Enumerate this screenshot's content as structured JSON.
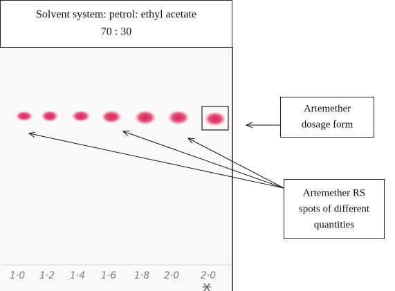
{
  "header": {
    "line1": "Solvent system: petrol: ethyl acetate",
    "line2": "70 : 30"
  },
  "callouts": {
    "dosage_form": {
      "line1": "Artemether",
      "line2": "dosage form"
    },
    "rs_spots": {
      "line1": "Artemether RS",
      "line2": "spots of different",
      "line3": "quantities"
    }
  },
  "lanes": [
    "1·0",
    "1·2",
    "1·4",
    "1·6",
    "1·8",
    "2·0",
    "2·0"
  ]
}
